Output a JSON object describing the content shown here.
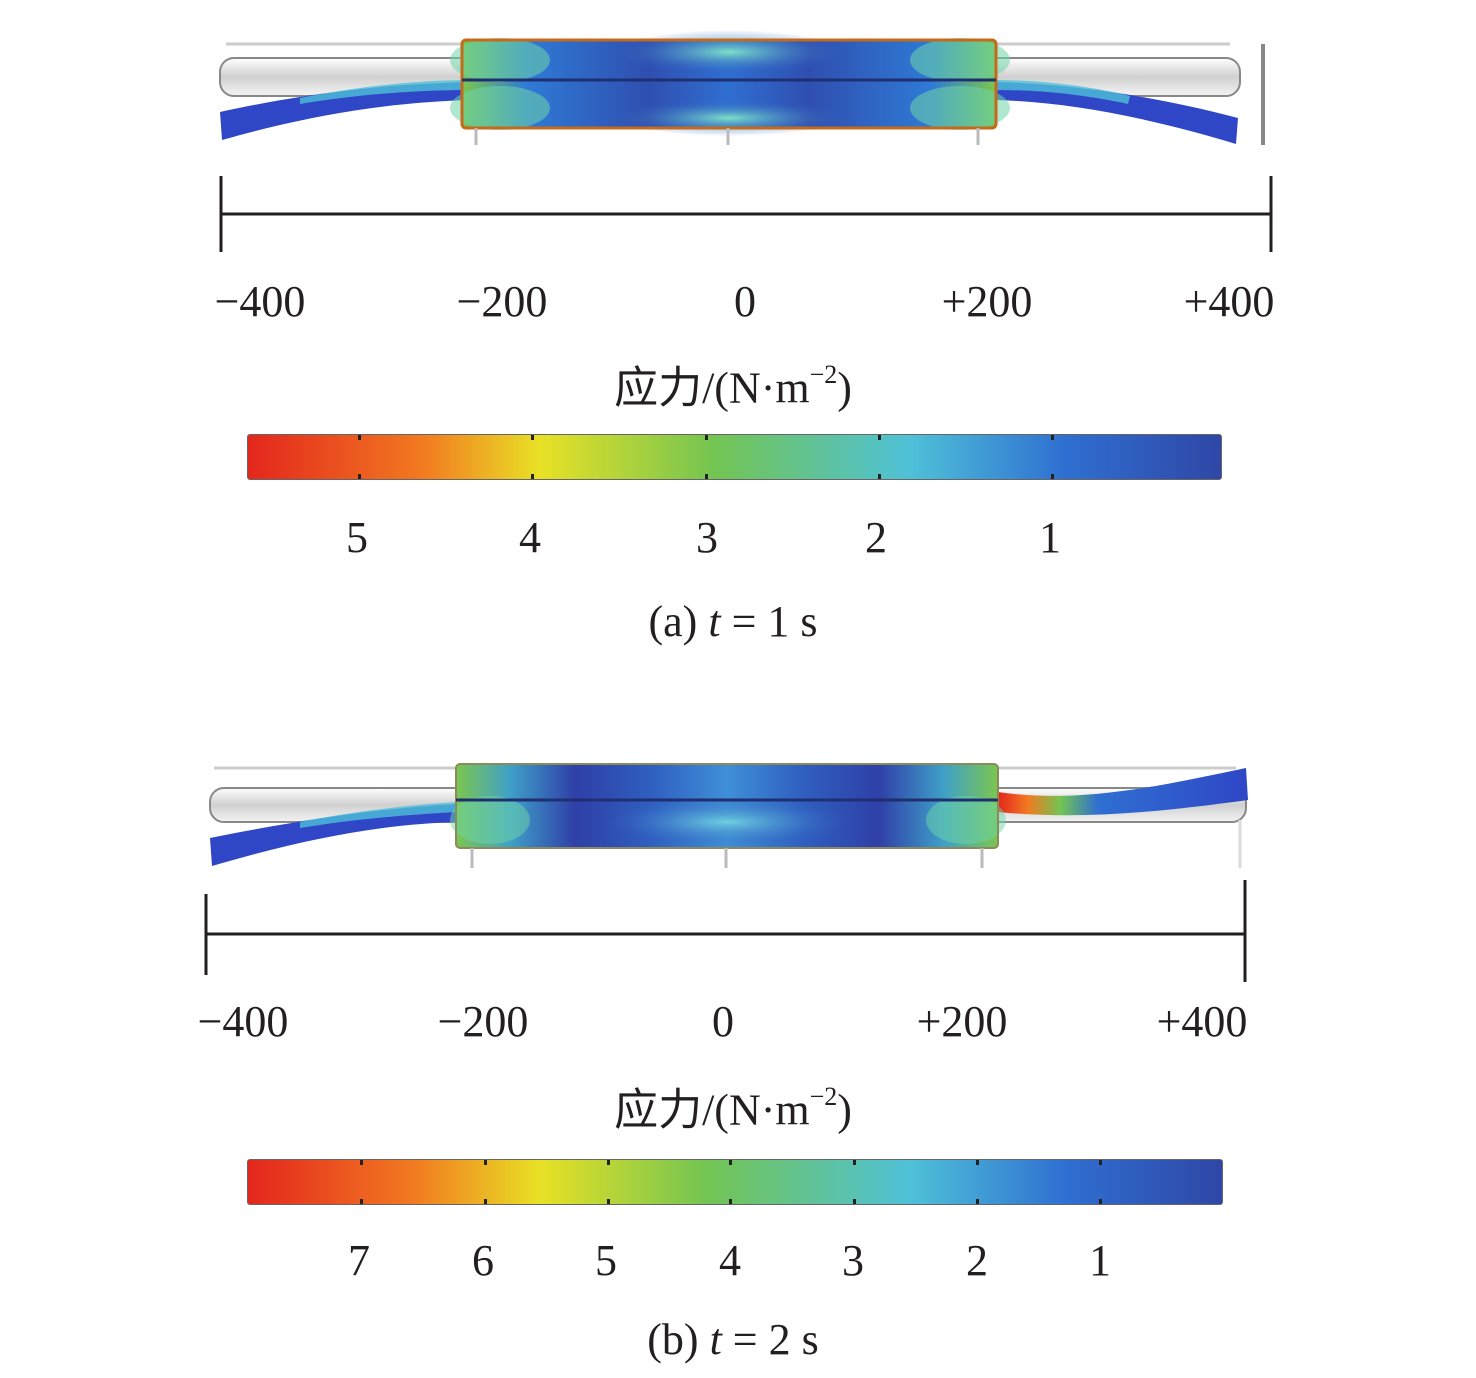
{
  "colors": {
    "red": "#e3261d",
    "orange": "#f27a21",
    "yellow": "#e8e125",
    "green": "#73c452",
    "cyan": "#4fc1d8",
    "blue": "#2f6fd1",
    "navy": "#2f47a6",
    "grey": "#c8c8c8"
  },
  "panel_a": {
    "axis_ticks": [
      "−400",
      "−200",
      "0",
      "+200",
      "+400"
    ],
    "unit": {
      "quantity": "应力/(N·m",
      "exponent": "−2",
      "close": ")"
    },
    "colorbar_labels": [
      "5",
      "4",
      "3",
      "2",
      "1"
    ],
    "caption": {
      "prefix": "(a) ",
      "var": "t",
      "rest": " = 1 s"
    }
  },
  "panel_b": {
    "axis_ticks": [
      "−400",
      "−200",
      "0",
      "+200",
      "+400"
    ],
    "unit": {
      "quantity": "应力/(N·m",
      "exponent": "−2",
      "close": ")"
    },
    "colorbar_labels": [
      "7",
      "6",
      "5",
      "4",
      "3",
      "2",
      "1"
    ],
    "caption": {
      "prefix": "(b) ",
      "var": "t",
      "rest": " = 2 s"
    }
  }
}
